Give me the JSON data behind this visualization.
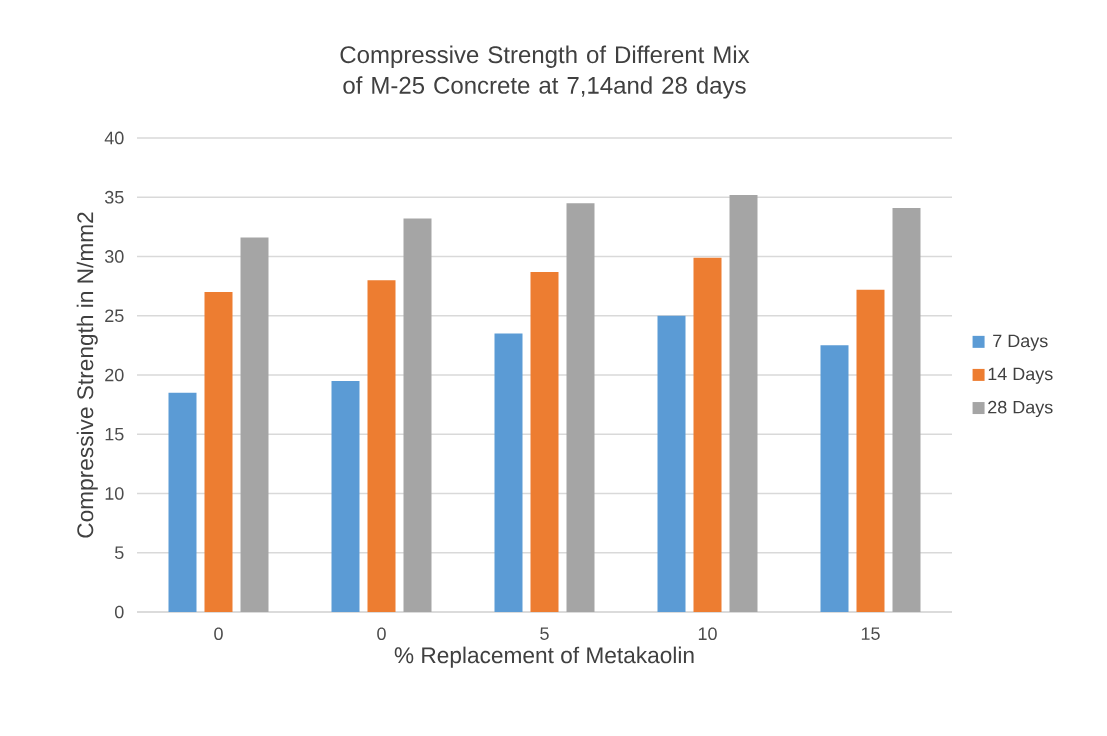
{
  "chart_data": {
    "type": "bar",
    "title": "Compressive Strength of Different Mix of M-25 Concrete at 7,14and 28 days",
    "xlabel": "% Replacement of Metakaolin",
    "ylabel": "Compressive Strength in N/mm2",
    "categories": [
      "0",
      "0",
      "5",
      "10",
      "15"
    ],
    "series": [
      {
        "name": "7 Days",
        "color": "#5b9bd5",
        "values": [
          18.5,
          19.5,
          23.5,
          25.0,
          22.5
        ]
      },
      {
        "name": "14 Days",
        "color": "#ed7d31",
        "values": [
          27.0,
          28.0,
          28.7,
          29.9,
          27.2
        ]
      },
      {
        "name": "28 Days",
        "color": "#a5a5a5",
        "values": [
          31.6,
          33.2,
          34.5,
          35.2,
          34.1
        ]
      }
    ],
    "ylim": [
      0,
      40
    ],
    "yticks": [
      0,
      5,
      10,
      15,
      20,
      25,
      30,
      35,
      40
    ],
    "grid": "y",
    "legend": "right"
  }
}
